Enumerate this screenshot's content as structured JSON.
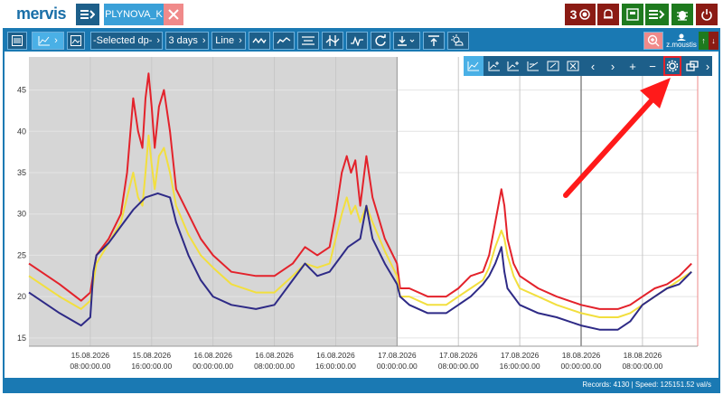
{
  "app": {
    "logo": "mervis",
    "file_tab": "PLYNOVA_K",
    "alarm_count": "3"
  },
  "toolbar": {
    "datapoint_select": "-Selected dp-",
    "range_select": "3 days",
    "mode_select": "Line",
    "user": "z.moustis"
  },
  "status": {
    "text": "Records: 4130 | Speed: 125151.52 val/s"
  },
  "chart_data": {
    "type": "line",
    "title": "",
    "xlabel": "",
    "ylabel": "",
    "ylim": [
      14,
      49
    ],
    "yticks": [
      15,
      20,
      25,
      30,
      35,
      40,
      45
    ],
    "x_ticks": [
      {
        "d": "15.08.2026",
        "t": "08:00:00.00",
        "x": 0
      },
      {
        "d": "15.08.2026",
        "t": "16:00:00.00",
        "x": 1
      },
      {
        "d": "16.08.2026",
        "t": "00:00:00.00",
        "x": 2
      },
      {
        "d": "16.08.2026",
        "t": "08:00:00.00",
        "x": 3
      },
      {
        "d": "16.08.2026",
        "t": "16:00:00.00",
        "x": 4
      },
      {
        "d": "17.08.2026",
        "t": "00:00:00.00",
        "x": 5
      },
      {
        "d": "17.08.2026",
        "t": "08:00:00.00",
        "x": 6
      },
      {
        "d": "17.08.2026",
        "t": "16:00:00.00",
        "x": 7
      },
      {
        "d": "18.08.2026",
        "t": "00:00:00.00",
        "x": 8
      },
      {
        "d": "18.08.2026",
        "t": "08:00:00.00",
        "x": 9
      }
    ],
    "xlim": [
      -1.0,
      9.9
    ],
    "shaded_range": [
      -1.0,
      5.0
    ],
    "series": [
      {
        "color": "#e3222b",
        "points": [
          [
            -1.0,
            24
          ],
          [
            -0.5,
            21.5
          ],
          [
            -0.15,
            19.5
          ],
          [
            0.0,
            20.5
          ],
          [
            0.1,
            25
          ],
          [
            0.3,
            27
          ],
          [
            0.5,
            30
          ],
          [
            0.6,
            35
          ],
          [
            0.7,
            44
          ],
          [
            0.78,
            40
          ],
          [
            0.85,
            38
          ],
          [
            0.9,
            44
          ],
          [
            0.95,
            47
          ],
          [
            1.0,
            43
          ],
          [
            1.05,
            38
          ],
          [
            1.12,
            43
          ],
          [
            1.2,
            45
          ],
          [
            1.3,
            40
          ],
          [
            1.4,
            33
          ],
          [
            1.6,
            30
          ],
          [
            1.8,
            27
          ],
          [
            2.0,
            25
          ],
          [
            2.3,
            23
          ],
          [
            2.7,
            22.5
          ],
          [
            3.0,
            22.5
          ],
          [
            3.3,
            24
          ],
          [
            3.5,
            26
          ],
          [
            3.7,
            25
          ],
          [
            3.9,
            26
          ],
          [
            4.0,
            30
          ],
          [
            4.1,
            35
          ],
          [
            4.18,
            37
          ],
          [
            4.25,
            35
          ],
          [
            4.32,
            36.5
          ],
          [
            4.4,
            31
          ],
          [
            4.5,
            37
          ],
          [
            4.6,
            32
          ],
          [
            4.8,
            27
          ],
          [
            5.0,
            24
          ],
          [
            5.05,
            21
          ],
          [
            5.2,
            21
          ],
          [
            5.5,
            20
          ],
          [
            5.8,
            20
          ],
          [
            6.0,
            21
          ],
          [
            6.2,
            22.5
          ],
          [
            6.4,
            23
          ],
          [
            6.5,
            25
          ],
          [
            6.6,
            29
          ],
          [
            6.7,
            33
          ],
          [
            6.75,
            31
          ],
          [
            6.8,
            27
          ],
          [
            6.9,
            24
          ],
          [
            7.0,
            22.5
          ],
          [
            7.3,
            21
          ],
          [
            7.6,
            20
          ],
          [
            8.0,
            19
          ],
          [
            8.3,
            18.5
          ],
          [
            8.6,
            18.5
          ],
          [
            8.8,
            19
          ],
          [
            9.0,
            20
          ],
          [
            9.2,
            21
          ],
          [
            9.4,
            21.5
          ],
          [
            9.6,
            22.5
          ],
          [
            9.8,
            24
          ]
        ]
      },
      {
        "color": "#f2df3e",
        "points": [
          [
            -1.0,
            22.5
          ],
          [
            -0.5,
            20
          ],
          [
            -0.15,
            18.5
          ],
          [
            0.0,
            19.5
          ],
          [
            0.1,
            24
          ],
          [
            0.3,
            26.5
          ],
          [
            0.5,
            29
          ],
          [
            0.6,
            32
          ],
          [
            0.7,
            35
          ],
          [
            0.78,
            32
          ],
          [
            0.85,
            31
          ],
          [
            0.9,
            35
          ],
          [
            0.95,
            39.5
          ],
          [
            1.0,
            36
          ],
          [
            1.05,
            33
          ],
          [
            1.12,
            37
          ],
          [
            1.2,
            38
          ],
          [
            1.3,
            35
          ],
          [
            1.4,
            31
          ],
          [
            1.6,
            27.5
          ],
          [
            1.8,
            25
          ],
          [
            2.0,
            23.5
          ],
          [
            2.3,
            21.5
          ],
          [
            2.7,
            20.5
          ],
          [
            3.0,
            20.5
          ],
          [
            3.3,
            22.5
          ],
          [
            3.5,
            24
          ],
          [
            3.7,
            23.5
          ],
          [
            3.9,
            24
          ],
          [
            4.0,
            27
          ],
          [
            4.1,
            30
          ],
          [
            4.18,
            32
          ],
          [
            4.25,
            30
          ],
          [
            4.32,
            31
          ],
          [
            4.4,
            29
          ],
          [
            4.5,
            31
          ],
          [
            4.6,
            29
          ],
          [
            4.8,
            25.5
          ],
          [
            5.0,
            22.5
          ],
          [
            5.05,
            20
          ],
          [
            5.2,
            20
          ],
          [
            5.5,
            19
          ],
          [
            5.8,
            19
          ],
          [
            6.0,
            20
          ],
          [
            6.2,
            21
          ],
          [
            6.4,
            22
          ],
          [
            6.5,
            23.5
          ],
          [
            6.6,
            26
          ],
          [
            6.7,
            28
          ],
          [
            6.75,
            27
          ],
          [
            6.8,
            25
          ],
          [
            6.9,
            22.5
          ],
          [
            7.0,
            21
          ],
          [
            7.3,
            20
          ],
          [
            7.6,
            19
          ],
          [
            8.0,
            18
          ],
          [
            8.3,
            17.5
          ],
          [
            8.6,
            17.5
          ],
          [
            8.8,
            18
          ],
          [
            9.0,
            19
          ],
          [
            9.2,
            20
          ],
          [
            9.4,
            21
          ],
          [
            9.6,
            22
          ],
          [
            9.8,
            23
          ]
        ]
      },
      {
        "color": "#2e2a86",
        "points": [
          [
            -1.0,
            20.5
          ],
          [
            -0.5,
            18
          ],
          [
            -0.15,
            16.5
          ],
          [
            0.0,
            17.5
          ],
          [
            0.05,
            23
          ],
          [
            0.1,
            25
          ],
          [
            0.3,
            26.5
          ],
          [
            0.5,
            28.5
          ],
          [
            0.7,
            30.5
          ],
          [
            0.9,
            32
          ],
          [
            1.1,
            32.5
          ],
          [
            1.3,
            32
          ],
          [
            1.4,
            29
          ],
          [
            1.6,
            25
          ],
          [
            1.8,
            22
          ],
          [
            2.0,
            20
          ],
          [
            2.3,
            19
          ],
          [
            2.7,
            18.5
          ],
          [
            3.0,
            19
          ],
          [
            3.3,
            22
          ],
          [
            3.5,
            24
          ],
          [
            3.7,
            22.5
          ],
          [
            3.9,
            23
          ],
          [
            4.0,
            24
          ],
          [
            4.2,
            26
          ],
          [
            4.4,
            27
          ],
          [
            4.5,
            31
          ],
          [
            4.6,
            27
          ],
          [
            4.8,
            24
          ],
          [
            5.0,
            21.5
          ],
          [
            5.05,
            20
          ],
          [
            5.2,
            19
          ],
          [
            5.5,
            18
          ],
          [
            5.8,
            18
          ],
          [
            6.0,
            19
          ],
          [
            6.2,
            20
          ],
          [
            6.4,
            21.5
          ],
          [
            6.5,
            22.5
          ],
          [
            6.6,
            24
          ],
          [
            6.7,
            26
          ],
          [
            6.75,
            23
          ],
          [
            6.8,
            21
          ],
          [
            6.9,
            20
          ],
          [
            7.0,
            19
          ],
          [
            7.3,
            18
          ],
          [
            7.6,
            17.5
          ],
          [
            8.0,
            16.5
          ],
          [
            8.3,
            16
          ],
          [
            8.6,
            16
          ],
          [
            8.8,
            17
          ],
          [
            9.0,
            19
          ],
          [
            9.2,
            20
          ],
          [
            9.4,
            21
          ],
          [
            9.6,
            21.5
          ],
          [
            9.8,
            23
          ]
        ]
      }
    ]
  }
}
